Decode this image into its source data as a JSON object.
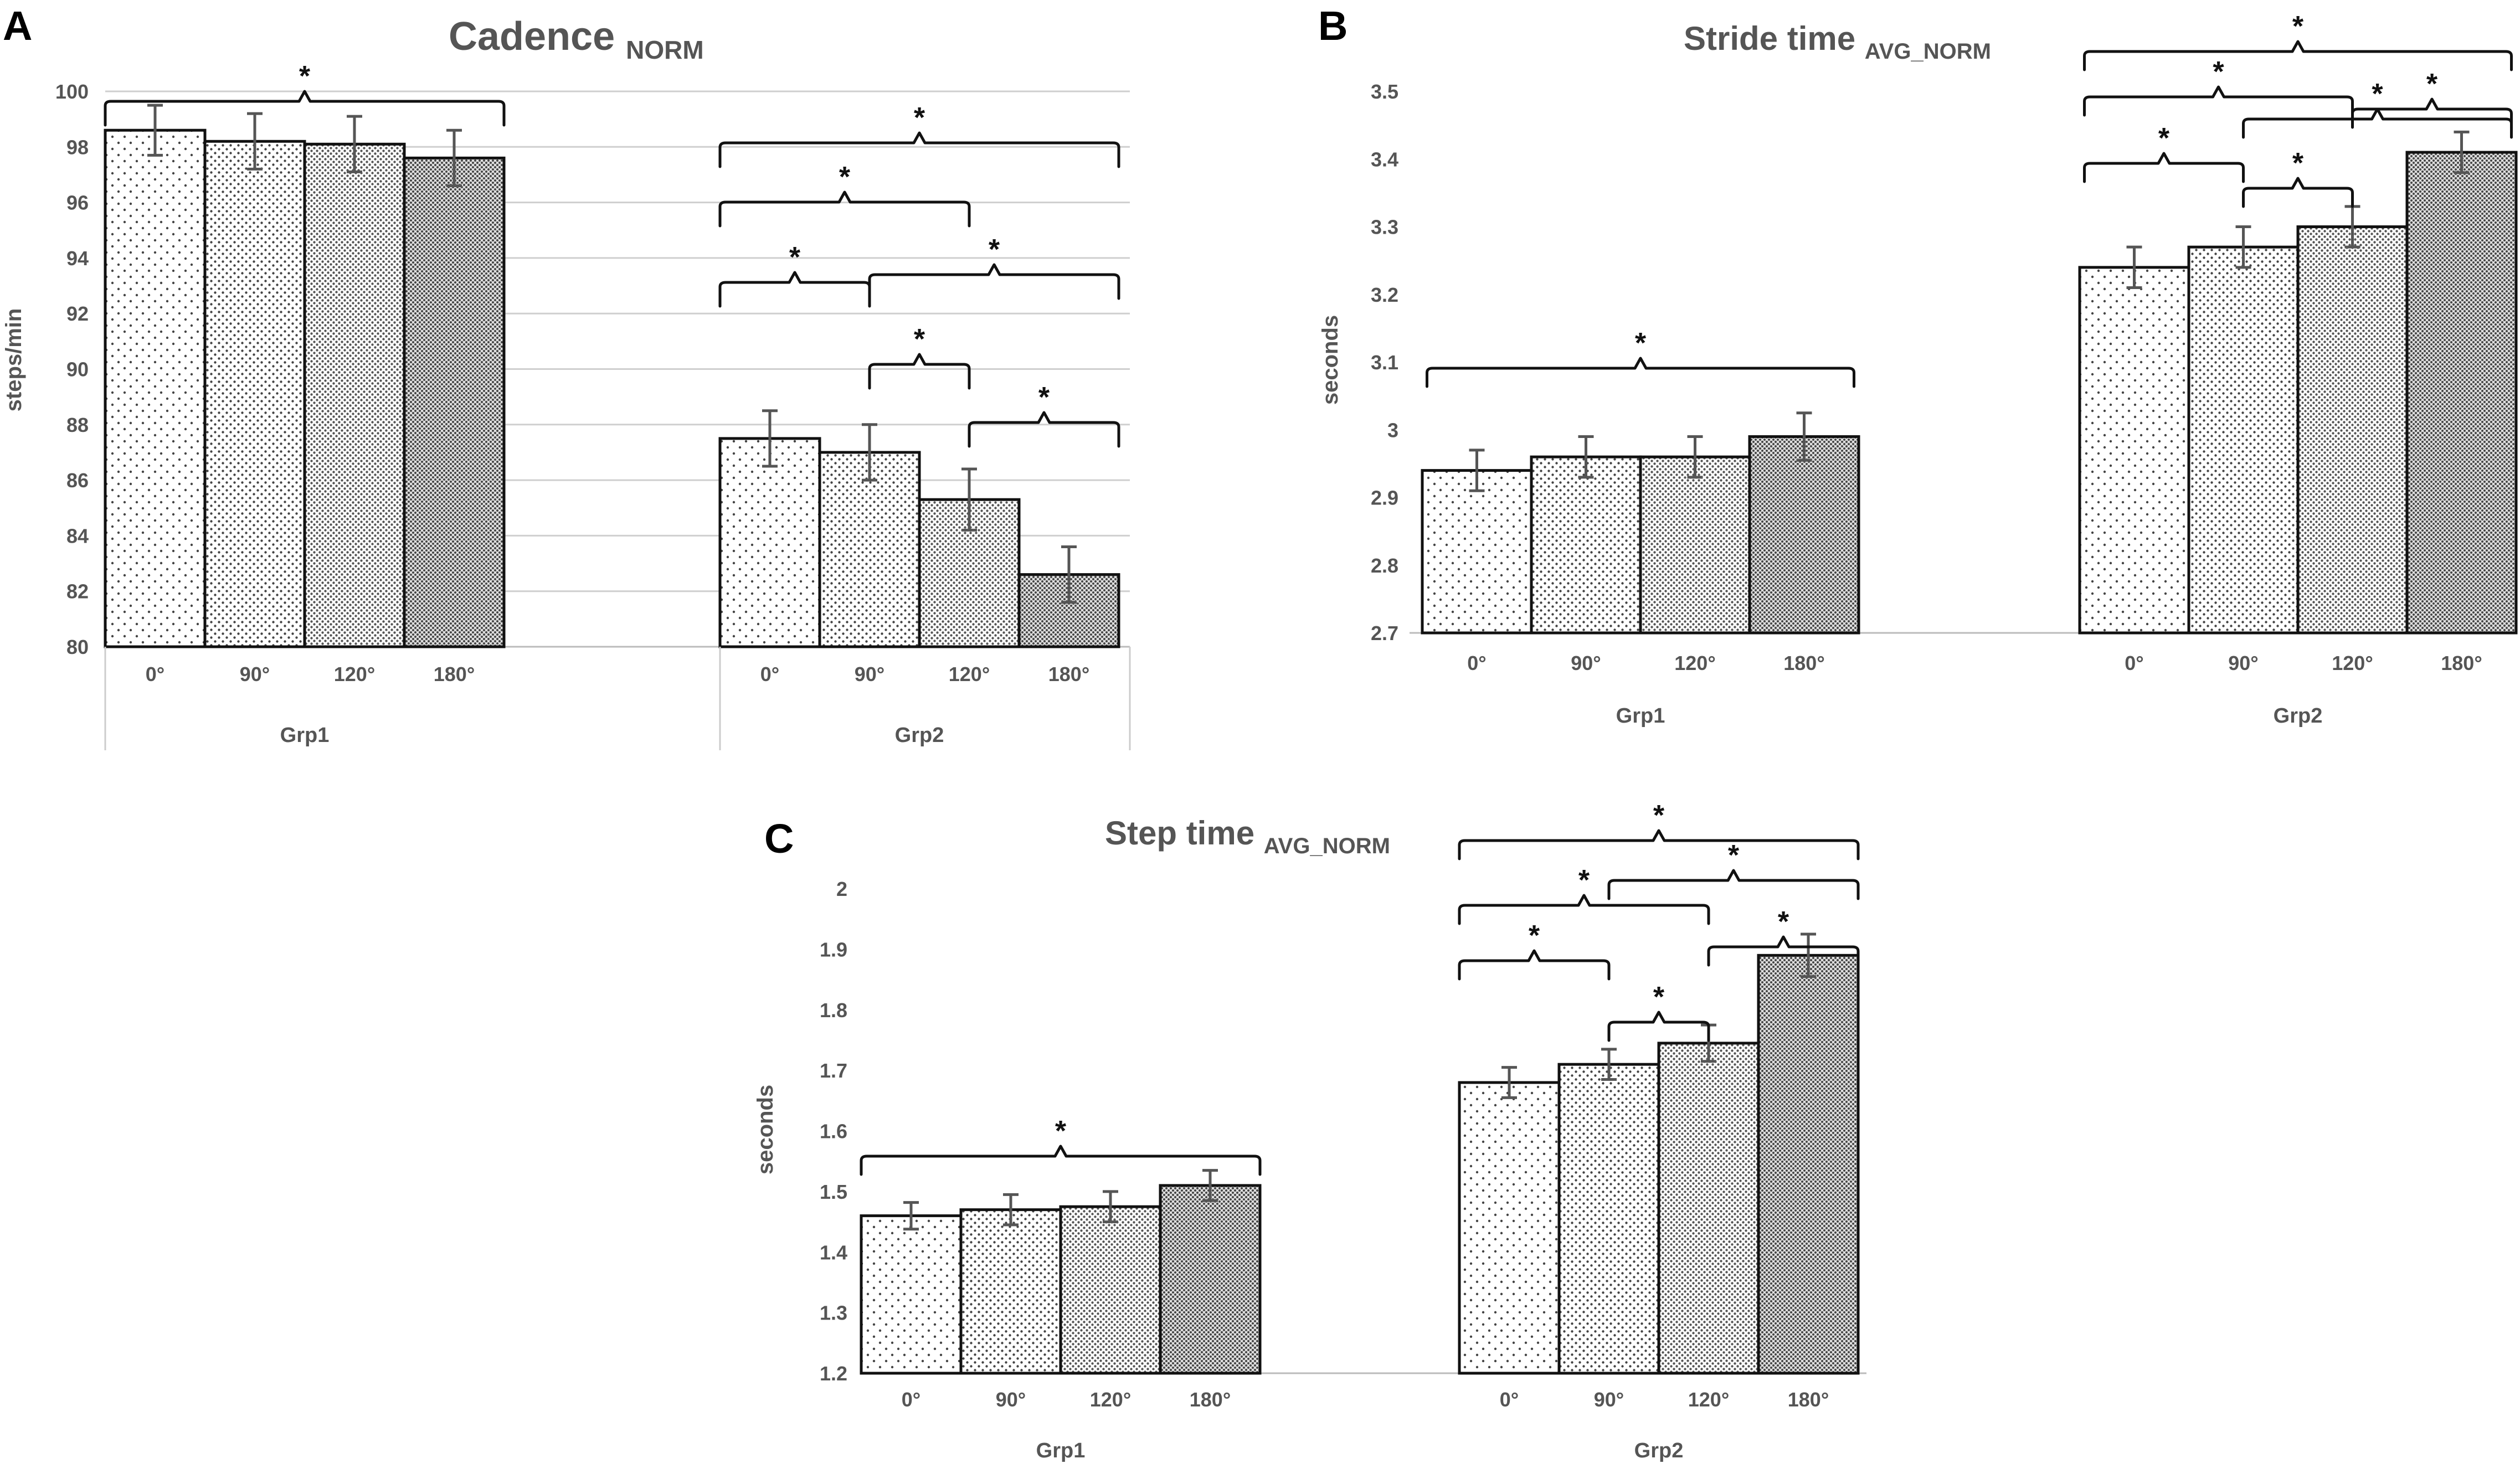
{
  "chart_data": [
    {
      "type": "bar",
      "panel_label": "A",
      "title": "Cadence",
      "title_subscript": "NORM",
      "ylabel": "steps/min",
      "ylim": [
        80,
        100
      ],
      "yticks": [
        "80",
        "82",
        "84",
        "86",
        "88",
        "90",
        "92",
        "94",
        "96",
        "98",
        "100"
      ],
      "categories": [
        "0°",
        "90°",
        "120°",
        "180°"
      ],
      "groups": [
        {
          "name": "Grp1",
          "values": [
            98.6,
            98.2,
            98.1,
            97.6
          ],
          "errors": [
            0.9,
            1.0,
            1.0,
            1.0
          ]
        },
        {
          "name": "Grp2",
          "values": [
            87.5,
            87.0,
            85.3,
            82.6
          ],
          "errors": [
            1.0,
            1.0,
            1.1,
            1.0
          ]
        }
      ],
      "significance": [
        {
          "group": 0,
          "from": 0,
          "to": 3,
          "label": "*"
        },
        {
          "group": 1,
          "from": 0,
          "to": 3,
          "label": "*"
        },
        {
          "group": 1,
          "from": 0,
          "to": 2,
          "label": "*"
        },
        {
          "group": 1,
          "from": 0,
          "to": 1,
          "label": "*"
        },
        {
          "group": 1,
          "from": 1,
          "to": 3,
          "label": "*"
        },
        {
          "group": 1,
          "from": 1,
          "to": 2,
          "label": "*"
        },
        {
          "group": 1,
          "from": 2,
          "to": 3,
          "label": "*"
        }
      ]
    },
    {
      "type": "bar",
      "panel_label": "B",
      "title": "Stride time",
      "title_subscript": "AVG_NORM",
      "ylabel": "seconds",
      "ylim": [
        2.7,
        3.5
      ],
      "yticks": [
        "2.7",
        "2.8",
        "2.9",
        "3",
        "3.1",
        "3.2",
        "3.3",
        "3.4",
        "3.5"
      ],
      "categories": [
        "0°",
        "90°",
        "120°",
        "180°"
      ],
      "groups": [
        {
          "name": "Grp1",
          "values": [
            2.94,
            2.96,
            2.96,
            2.99
          ],
          "errors": [
            0.03,
            0.03,
            0.03,
            0.035
          ]
        },
        {
          "name": "Grp2",
          "values": [
            3.24,
            3.27,
            3.3,
            3.41
          ],
          "errors": [
            0.03,
            0.03,
            0.03,
            0.03
          ]
        }
      ],
      "significance": [
        {
          "group": 0,
          "from": 0,
          "to": 3,
          "label": "*"
        },
        {
          "group": 1,
          "from": 0,
          "to": 3,
          "label": "*"
        },
        {
          "group": 1,
          "from": 0,
          "to": 2,
          "label": "*"
        },
        {
          "group": 1,
          "from": 0,
          "to": 1,
          "label": "*"
        },
        {
          "group": 1,
          "from": 1,
          "to": 3,
          "label": "*"
        },
        {
          "group": 1,
          "from": 1,
          "to": 2,
          "label": "*"
        },
        {
          "group": 1,
          "from": 2,
          "to": 3,
          "label": "*"
        }
      ]
    },
    {
      "type": "bar",
      "panel_label": "C",
      "title": "Step time",
      "title_subscript": "AVG_NORM",
      "ylabel": "seconds",
      "ylim": [
        1.2,
        2.0
      ],
      "yticks": [
        "1.2",
        "1.3",
        "1.4",
        "1.5",
        "1.6",
        "1.7",
        "1.8",
        "1.9",
        "2"
      ],
      "categories": [
        "0°",
        "90°",
        "120°",
        "180°"
      ],
      "groups": [
        {
          "name": "Grp1",
          "values": [
            1.46,
            1.47,
            1.475,
            1.51
          ],
          "errors": [
            0.022,
            0.025,
            0.025,
            0.025
          ]
        },
        {
          "name": "Grp2",
          "values": [
            1.68,
            1.71,
            1.745,
            1.89
          ],
          "errors": [
            0.025,
            0.025,
            0.03,
            0.035
          ]
        }
      ],
      "significance": [
        {
          "group": 0,
          "from": 0,
          "to": 3,
          "label": "*"
        },
        {
          "group": 1,
          "from": 0,
          "to": 3,
          "label": "*"
        },
        {
          "group": 1,
          "from": 0,
          "to": 2,
          "label": "*"
        },
        {
          "group": 1,
          "from": 0,
          "to": 1,
          "label": "*"
        },
        {
          "group": 1,
          "from": 1,
          "to": 3,
          "label": "*"
        },
        {
          "group": 1,
          "from": 1,
          "to": 2,
          "label": "*"
        },
        {
          "group": 1,
          "from": 2,
          "to": 3,
          "label": "*"
        }
      ]
    }
  ]
}
